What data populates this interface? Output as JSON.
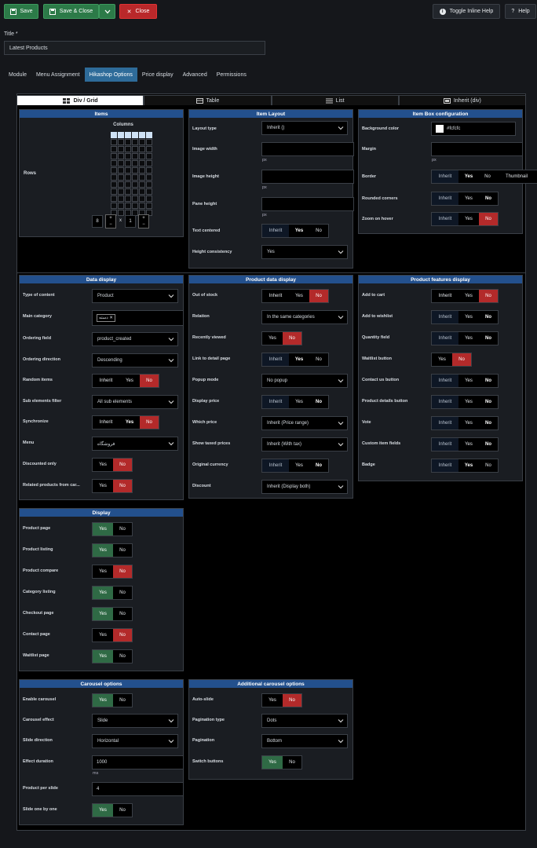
{
  "toolbar": {
    "save": "Save",
    "save_close": "Save & Close",
    "close": "Close",
    "toggle_help": "Toggle Inline Help",
    "help": "Help"
  },
  "title_label": "Title *",
  "title_value": "Latest Products",
  "tabs": [
    "Module",
    "Menu Assignment",
    "Hikashop Options",
    "Price display",
    "Advanced",
    "Permissions"
  ],
  "layout_tabs": [
    "Div / Grid",
    "Table",
    "List",
    "Inherit (div)"
  ],
  "items": {
    "head": "Items",
    "columns_label": "Columns",
    "rows_label": "Rows",
    "rows_value": "8",
    "cols_value": "1",
    "times": "x"
  },
  "item_layout": {
    "head": "Item Layout",
    "layout_type": "Layout type",
    "layout_value": "Inherit ()",
    "image_width": "Image width",
    "image_height": "Image height",
    "pane_height": "Pane height",
    "text_centered": "Text centered",
    "height_consistency": "Height consistency",
    "height_value": "Yes",
    "px": "px"
  },
  "item_box": {
    "head": "Item Box configuration",
    "bg_color": "Background color",
    "bg_value": "#fcfcfc",
    "margin": "Margin",
    "border": "Border",
    "rounded": "Rounded corners",
    "zoom": "Zoom on hover",
    "px": "px",
    "thumbnail": "Thumbnail"
  },
  "data_display": {
    "head": "Data display",
    "type": "Type of content",
    "type_value": "Product",
    "main_cat": "Main category",
    "main_cat_value": "دسته",
    "ordering_field": "Ordering field",
    "ordering_field_value": "product_created",
    "ordering_dir": "Ordering direction",
    "ordering_dir_value": "Descending",
    "random": "Random items",
    "sub_filter": "Sub elements filter",
    "sub_filter_value": "All sub elements",
    "sync": "Synchronize",
    "menu": "Menu",
    "menu_value": "فروشگاه",
    "discounted": "Discounted only",
    "related": "Related products from car..."
  },
  "product_data": {
    "head": "Product data display",
    "out_stock": "Out of stock",
    "relation": "Relation",
    "relation_value": "In the same categories",
    "recently": "Recently viewed",
    "link": "Link to detail page",
    "popup": "Popup mode",
    "popup_value": "No popup",
    "display_price": "Display price",
    "which_price": "Which price",
    "which_price_value": "Inherit (Price range)",
    "taxed": "Show taxed prices",
    "taxed_value": "Inherit (With tax)",
    "orig_currency": "Original currency",
    "discount": "Discount",
    "discount_value": "Inherit (Display both)"
  },
  "features": {
    "head": "Product features display",
    "add_cart": "Add to cart",
    "add_wish": "Add to wishlist",
    "qty": "Quantity field",
    "waitlist": "Waitlist button",
    "contact": "Contact us button",
    "details": "Product details button",
    "vote": "Vote",
    "custom": "Custom item fields",
    "badge": "Badge"
  },
  "display": {
    "head": "Display",
    "product_page": "Product page",
    "product_listing": "Product listing",
    "product_compare": "Product compare",
    "category_listing": "Category listing",
    "checkout": "Checkout page",
    "contact": "Contact page",
    "waitlist": "Waitlist page"
  },
  "carousel": {
    "head": "Carousel options",
    "enable": "Enable carousel",
    "effect": "Carousel effect",
    "effect_value": "Slide",
    "direction": "Slide direction",
    "direction_value": "Horizontal",
    "duration": "Effect duration",
    "duration_value": "1000",
    "ms": "ms",
    "per_slide": "Product per slide",
    "per_slide_value": "4",
    "one_by_one": "Slide one by one"
  },
  "add_carousel": {
    "head": "Additional carousel options",
    "autoslide": "Auto-slide",
    "pag_type": "Pagination type",
    "pag_type_value": "Dots",
    "pagination": "Pagination",
    "pagination_value": "Bottom",
    "switch": "Switch buttons"
  },
  "opt": {
    "inherit": "Inherit",
    "yes": "Yes",
    "no": "No"
  }
}
